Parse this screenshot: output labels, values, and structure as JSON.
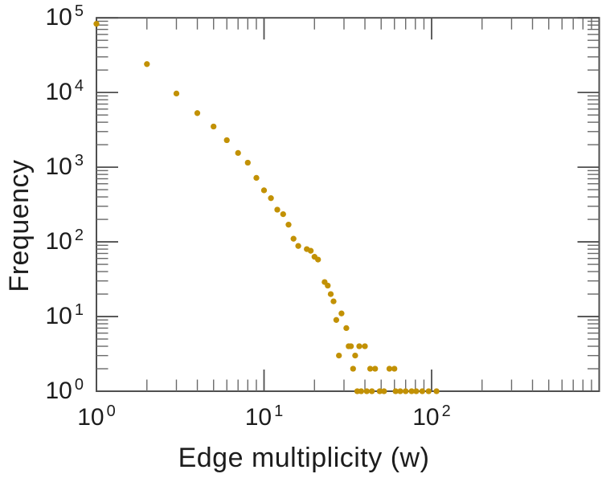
{
  "chart_data": {
    "type": "scatter",
    "title": "",
    "xlabel": "Edge multiplicity (w)",
    "ylabel": "Frequency",
    "x_scale": "log",
    "y_scale": "log",
    "xlim": [
      1,
      1000
    ],
    "ylim": [
      1,
      100000
    ],
    "x_tick_exponents": [
      0,
      1,
      2
    ],
    "y_tick_exponents": [
      0,
      1,
      2,
      3,
      4,
      5
    ],
    "tick_label_base": "10",
    "grid": false,
    "legend_position": "none",
    "marker": {
      "shape": "circle",
      "color": "#C29104",
      "radius_px": 3.65
    },
    "points": [
      [
        1,
        83000
      ],
      [
        2,
        24000
      ],
      [
        3,
        9700
      ],
      [
        4,
        5300
      ],
      [
        5,
        3500
      ],
      [
        6,
        2300
      ],
      [
        7,
        1550
      ],
      [
        8,
        1150
      ],
      [
        9,
        720
      ],
      [
        10,
        490
      ],
      [
        11,
        385
      ],
      [
        12,
        270
      ],
      [
        13,
        235
      ],
      [
        14,
        170
      ],
      [
        15,
        110
      ],
      [
        16,
        88
      ],
      [
        18,
        80
      ],
      [
        19,
        76
      ],
      [
        20,
        63
      ],
      [
        21,
        58
      ],
      [
        23,
        29
      ],
      [
        24,
        26
      ],
      [
        25,
        20
      ],
      [
        26,
        16
      ],
      [
        27,
        9
      ],
      [
        28,
        3
      ],
      [
        29,
        11
      ],
      [
        31,
        7
      ],
      [
        32,
        4
      ],
      [
        33,
        4
      ],
      [
        34,
        2
      ],
      [
        35,
        3
      ],
      [
        36,
        1
      ],
      [
        37,
        4
      ],
      [
        38,
        1
      ],
      [
        40,
        4
      ],
      [
        41,
        1
      ],
      [
        43,
        2
      ],
      [
        44,
        1
      ],
      [
        46,
        2
      ],
      [
        49,
        1
      ],
      [
        52,
        1
      ],
      [
        56,
        2
      ],
      [
        60,
        2
      ],
      [
        61,
        1
      ],
      [
        65,
        1
      ],
      [
        70,
        1
      ],
      [
        76,
        1
      ],
      [
        81,
        1
      ],
      [
        88,
        1
      ],
      [
        96,
        1
      ],
      [
        107,
        1
      ]
    ]
  },
  "style": {
    "background": "#ffffff",
    "axis_color": "#4f4f4f",
    "minor_tick_color": "#6a6a6a",
    "text_color": "#1c1c1c"
  }
}
